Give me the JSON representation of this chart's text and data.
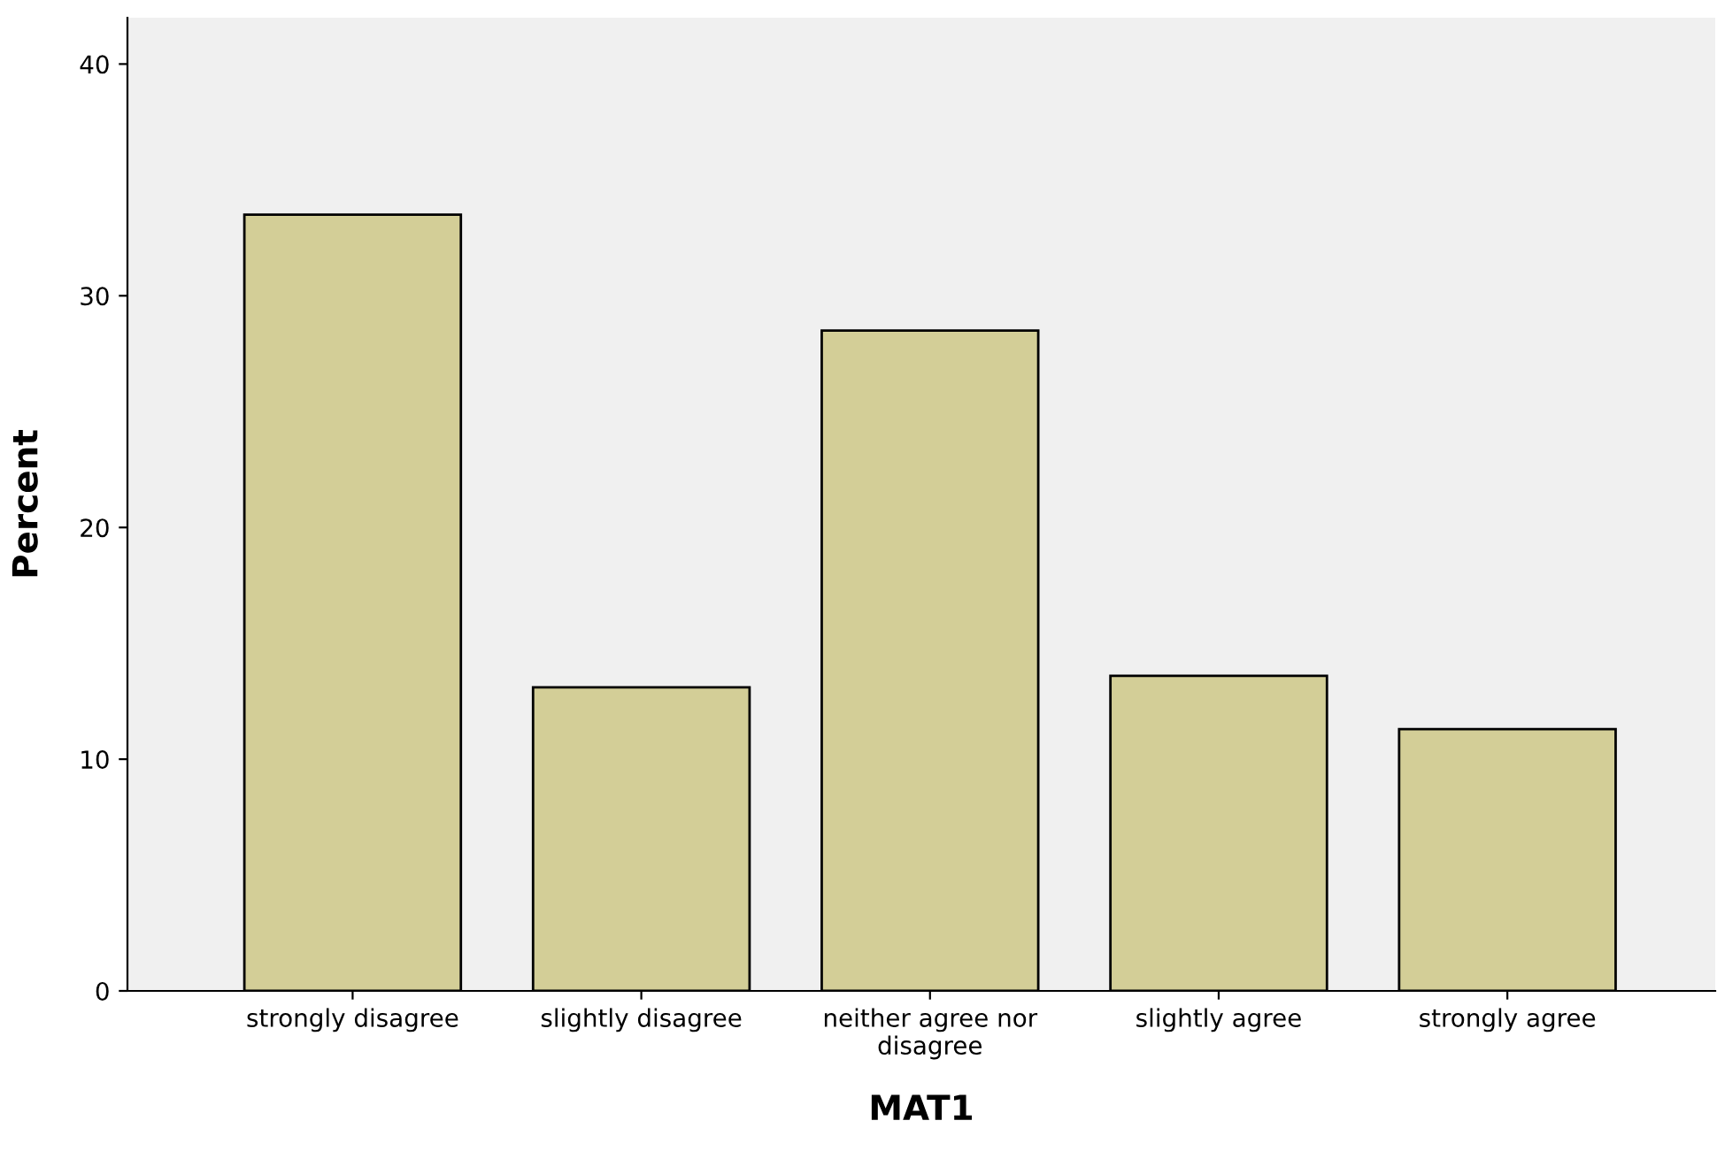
{
  "chart_data": {
    "type": "bar",
    "xlabel": "MAT1",
    "ylabel": "Percent",
    "categories": [
      "strongly disagree",
      "slightly disagree",
      "neither agree nor\ndisagree",
      "slightly agree",
      "strongly agree"
    ],
    "values": [
      33.5,
      13.1,
      28.5,
      13.6,
      11.3
    ],
    "color": "#d3ce97",
    "ylim": [
      0,
      42
    ],
    "yticks": [
      0,
      10,
      20,
      30,
      40
    ],
    "grid": false
  }
}
